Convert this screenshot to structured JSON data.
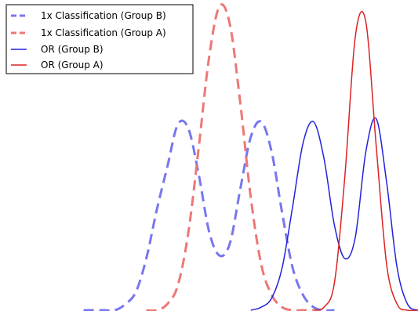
{
  "chart_data": {
    "type": "line",
    "title": "",
    "xlabel": "",
    "ylabel": "",
    "xlim": [
      0,
      10
    ],
    "ylim": [
      0,
      1
    ],
    "axes_visible": false,
    "grid": false,
    "legend_position": "top-left",
    "series": [
      {
        "name": "1x Classification (Group B)",
        "color": "#7777ee",
        "style": "dashed",
        "x": [
          2.0,
          2.25,
          2.5,
          2.75,
          3.0,
          3.25,
          3.5,
          3.75,
          4.0,
          4.25,
          4.5,
          4.75,
          5.0,
          5.25,
          5.5,
          5.75,
          6.0,
          6.25,
          6.5,
          6.75,
          7.0,
          7.25,
          7.5,
          7.75,
          8.0
        ],
        "y": [
          0.0,
          0.0,
          0.0,
          0.0,
          0.02,
          0.06,
          0.17,
          0.33,
          0.47,
          0.61,
          0.6,
          0.45,
          0.26,
          0.18,
          0.22,
          0.4,
          0.57,
          0.62,
          0.52,
          0.32,
          0.14,
          0.05,
          0.01,
          0.0,
          0.0
        ]
      },
      {
        "name": "1x Classification (Group A)",
        "color": "#ee7777",
        "style": "dashed",
        "x": [
          3.5,
          3.75,
          4.0,
          4.25,
          4.5,
          4.75,
          5.0,
          5.25,
          5.5,
          5.75,
          6.0,
          6.25,
          6.5,
          6.75,
          7.0,
          7.25,
          7.5
        ],
        "y": [
          0.0,
          0.0,
          0.02,
          0.08,
          0.25,
          0.53,
          0.83,
          1.0,
          0.94,
          0.68,
          0.37,
          0.15,
          0.05,
          0.01,
          0.0,
          0.0,
          0.0
        ]
      },
      {
        "name": "OR (Group B)",
        "color": "#2222dd",
        "style": "solid",
        "x": [
          6.0,
          6.25,
          6.5,
          6.75,
          7.0,
          7.25,
          7.5,
          7.75,
          8.0,
          8.25,
          8.5,
          8.75,
          9.0,
          9.25,
          9.5,
          9.75,
          10.0
        ],
        "y": [
          0.0,
          0.01,
          0.04,
          0.14,
          0.34,
          0.55,
          0.62,
          0.5,
          0.28,
          0.17,
          0.24,
          0.52,
          0.63,
          0.42,
          0.14,
          0.02,
          0.0
        ]
      },
      {
        "name": "OR (Group A)",
        "color": "#dd2222",
        "style": "solid",
        "x": [
          7.5,
          7.75,
          8.0,
          8.25,
          8.5,
          8.75,
          9.0,
          9.25,
          9.5,
          9.75,
          10.0
        ],
        "y": [
          0.0,
          0.01,
          0.09,
          0.44,
          0.9,
          0.95,
          0.54,
          0.15,
          0.02,
          0.0,
          0.0
        ]
      }
    ]
  }
}
